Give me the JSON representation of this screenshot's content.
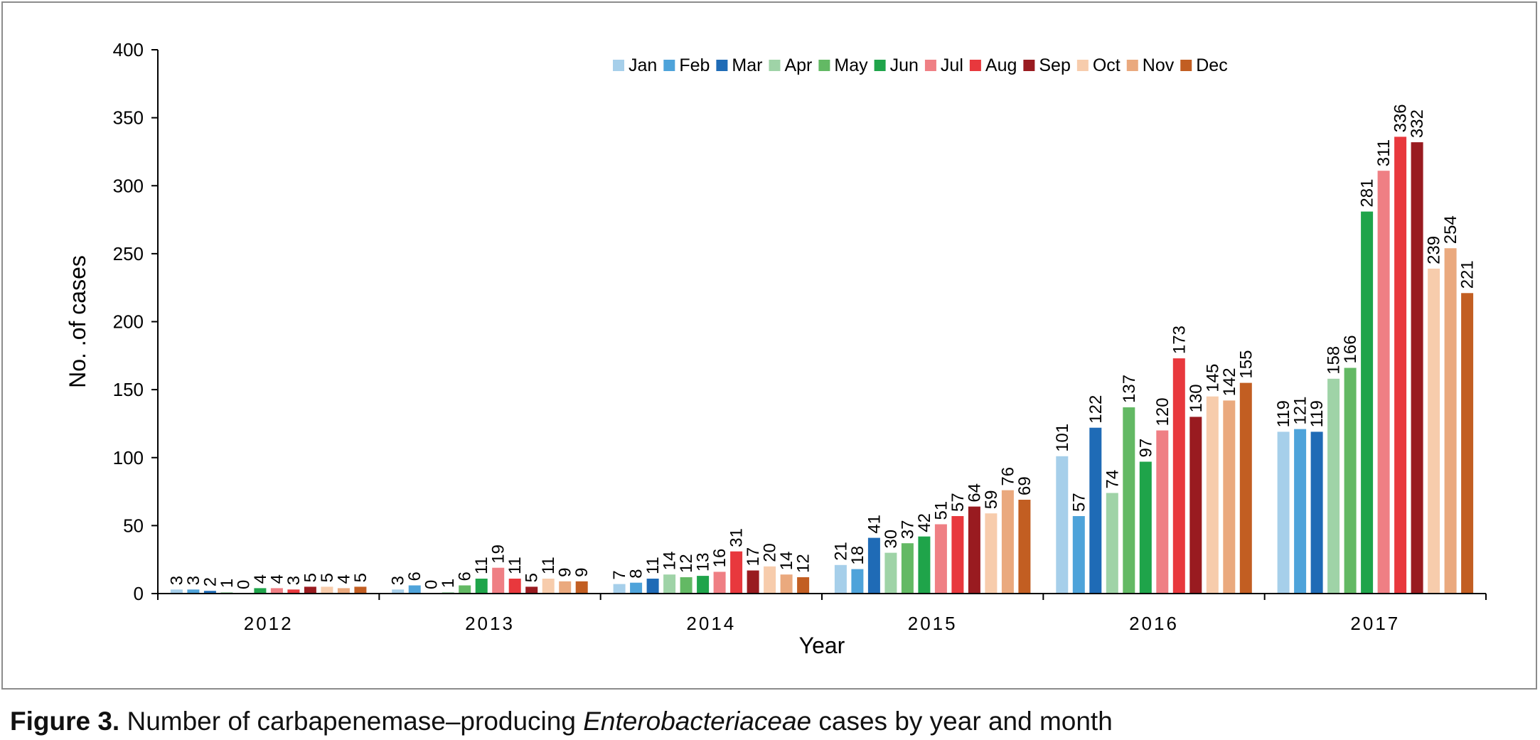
{
  "caption": {
    "label": "Figure 3.",
    "text_before": "Number of carbapenemase–producing",
    "italic": "Enterobacteriaceae",
    "text_after": "cases by year and month"
  },
  "chart_data": {
    "type": "bar",
    "title": "",
    "xlabel": "Year",
    "ylabel": "No. .of cases",
    "ylim": [
      0,
      400
    ],
    "yticks": [
      0,
      50,
      100,
      150,
      200,
      250,
      300,
      350,
      400
    ],
    "grid": false,
    "legend_position": "top",
    "categories": [
      "2012",
      "2013",
      "2014",
      "2015",
      "2016",
      "2017"
    ],
    "series": [
      {
        "name": "Jan",
        "color": "#a6cfea",
        "values": [
          3,
          3,
          7,
          21,
          101,
          119
        ]
      },
      {
        "name": "Feb",
        "color": "#4ea3da",
        "values": [
          3,
          6,
          8,
          18,
          57,
          121
        ]
      },
      {
        "name": "Mar",
        "color": "#1f6bb6",
        "values": [
          2,
          0,
          11,
          41,
          122,
          119
        ]
      },
      {
        "name": "Apr",
        "color": "#9fd3a7",
        "values": [
          1,
          1,
          14,
          30,
          74,
          158
        ]
      },
      {
        "name": "May",
        "color": "#63b964",
        "values": [
          0,
          6,
          12,
          37,
          137,
          166
        ]
      },
      {
        "name": "Jun",
        "color": "#1fa44a",
        "values": [
          4,
          11,
          13,
          42,
          97,
          281
        ]
      },
      {
        "name": "Jul",
        "color": "#ef7f84",
        "values": [
          4,
          19,
          16,
          51,
          120,
          311
        ]
      },
      {
        "name": "Aug",
        "color": "#e8383d",
        "values": [
          3,
          11,
          31,
          57,
          173,
          336
        ]
      },
      {
        "name": "Sep",
        "color": "#991b20",
        "values": [
          5,
          5,
          17,
          64,
          130,
          332
        ]
      },
      {
        "name": "Oct",
        "color": "#f7ccac",
        "values": [
          5,
          11,
          20,
          59,
          145,
          239
        ]
      },
      {
        "name": "Nov",
        "color": "#eaa97e",
        "values": [
          4,
          9,
          14,
          76,
          142,
          254
        ]
      },
      {
        "name": "Dec",
        "color": "#c25e22",
        "values": [
          5,
          9,
          12,
          69,
          155,
          221
        ]
      }
    ]
  }
}
